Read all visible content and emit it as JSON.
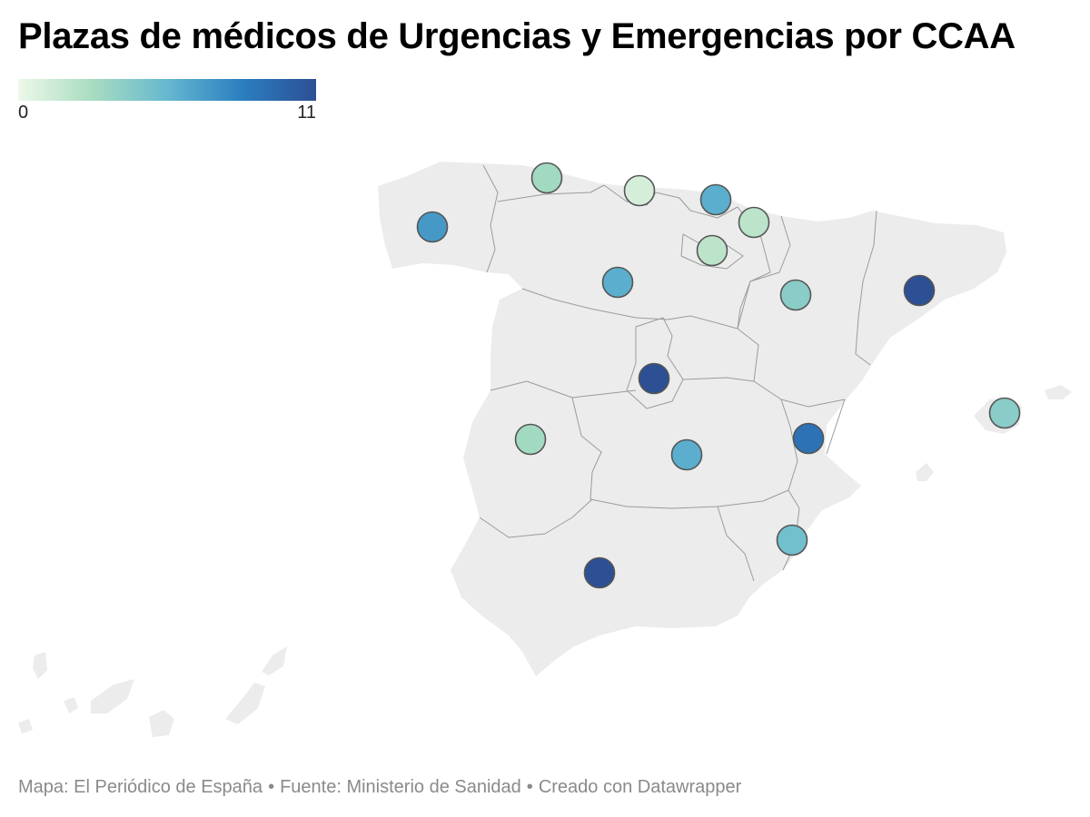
{
  "title": "Plazas de médicos de Urgencias y Emergencias por CCAA",
  "legend": {
    "min": "0",
    "max": "11",
    "colors": [
      "#edf8e9",
      "#a8dcc0",
      "#66b8d0",
      "#2b7fc0",
      "#2d4f94"
    ]
  },
  "footer": {
    "map_credit": "Mapa: El Periódico de España",
    "source": "Fuente: Ministerio de Sanidad",
    "tool": "Creado con Datawrapper"
  },
  "colors": {
    "land": "#ececec",
    "border": "#9b9b9b",
    "bubble_stroke": "#555555"
  },
  "regions": [
    {
      "value": 7
    },
    {
      "value": 3
    },
    {
      "value": 1
    },
    {
      "value": 6
    },
    {
      "value": 2
    },
    {
      "value": 2
    },
    {
      "value": 6
    },
    {
      "value": 4
    },
    {
      "value": 11
    },
    {
      "value": 11
    },
    {
      "value": 4
    },
    {
      "value": 3
    },
    {
      "value": 6
    },
    {
      "value": 9
    },
    {
      "value": 5
    },
    {
      "value": 11
    }
  ]
}
